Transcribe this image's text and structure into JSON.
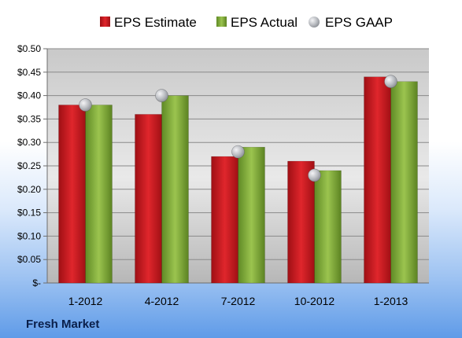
{
  "chart_data": {
    "type": "bar",
    "categories": [
      "1-2012",
      "4-2012",
      "7-2012",
      "10-2012",
      "1-2013"
    ],
    "series": [
      {
        "name": "EPS Estimate",
        "kind": "bar",
        "color": "#c0171c",
        "values": [
          0.38,
          0.36,
          0.27,
          0.26,
          0.44
        ]
      },
      {
        "name": "EPS Actual",
        "kind": "bar",
        "color": "#7ba33a",
        "values": [
          0.38,
          0.4,
          0.29,
          0.24,
          0.43
        ]
      },
      {
        "name": "EPS GAAP",
        "kind": "marker",
        "color": "#b5b8bd",
        "values": [
          0.38,
          0.4,
          0.28,
          0.23,
          0.43
        ]
      }
    ],
    "ylim": [
      0,
      0.5
    ],
    "yticks": [
      0,
      0.05,
      0.1,
      0.15,
      0.2,
      0.25,
      0.3,
      0.35,
      0.4,
      0.45,
      0.5
    ],
    "ytick_labels": [
      "$-",
      "$0.05",
      "$0.10",
      "$0.15",
      "$0.20",
      "$0.25",
      "$0.30",
      "$0.35",
      "$0.40",
      "$0.45",
      "$0.50"
    ],
    "grid": true,
    "legend_position": "top"
  },
  "footer": {
    "company": "Fresh Market"
  }
}
